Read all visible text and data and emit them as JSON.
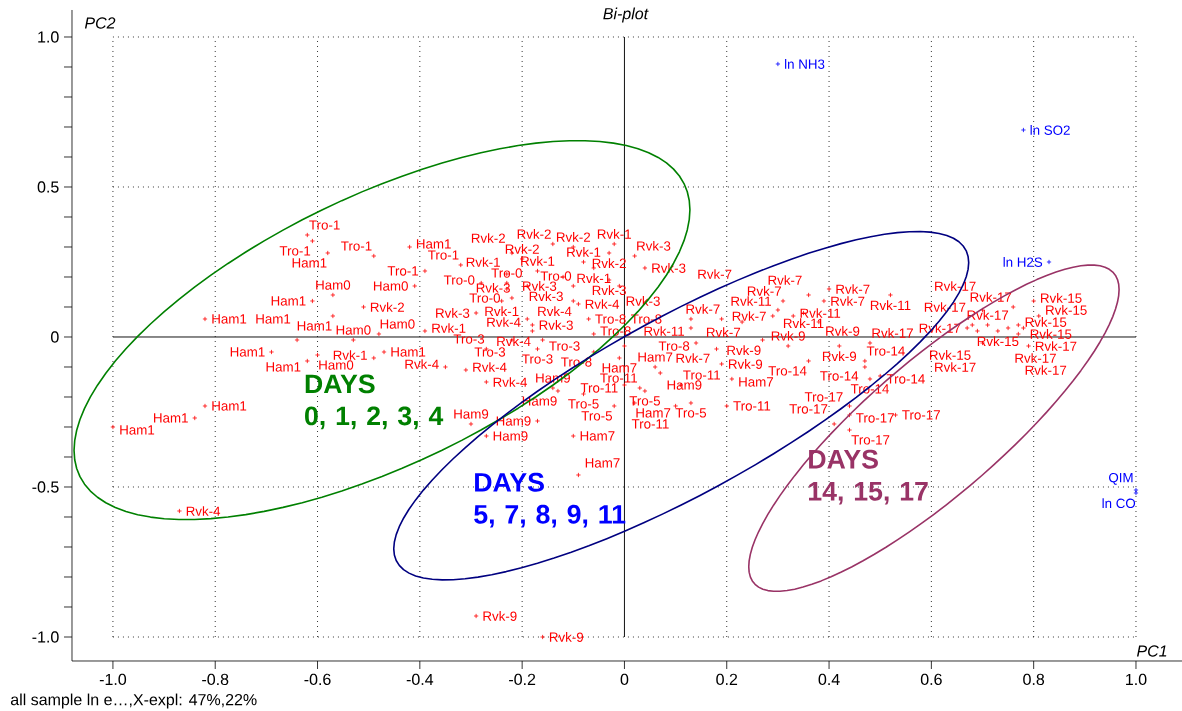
{
  "chart_data": {
    "type": "scatter",
    "title": "Bi-plot",
    "xlabel": "PC1",
    "ylabel": "PC2",
    "annotations": [
      "DAYS 0, 1, 2, 3, 4",
      "DAYS 5, 7, 8, 9, 11",
      "DAYS 14, 15, 17",
      "all sample ln e…,X-expl: 47%,22%"
    ],
    "xlim": [
      -1.08,
      1.09
    ],
    "ylim": [
      -1.08,
      1.09
    ],
    "xticks": [
      {
        "value": -1,
        "label": "-1.0"
      },
      -0.8,
      -0.6,
      -0.4,
      -0.2,
      0,
      0.2,
      0.4,
      0.6,
      0.8,
      {
        "value": 1,
        "label": "1.0"
      }
    ],
    "yticks": [
      {
        "value": -1,
        "label": "-1.0"
      },
      -0.5,
      0,
      0.5,
      {
        "value": 1,
        "label": "1.0"
      }
    ],
    "grid": true,
    "marker": "cross",
    "series": [
      {
        "color": "#ff0000",
        "x": [
          -0.62,
          -0.61,
          -0.58,
          -0.49,
          -0.42,
          -0.39,
          -0.41,
          -0.32,
          -0.57,
          -0.61,
          -0.51,
          -0.57,
          -0.82,
          -0.64,
          -0.48,
          -0.53,
          -0.69,
          -0.6,
          -0.62,
          -0.49,
          -0.47,
          -0.82,
          -0.84,
          -1.0,
          -0.87,
          -0.39,
          -0.29,
          -0.24,
          -0.22,
          -0.28,
          -0.23,
          -0.23,
          -0.1,
          -0.14,
          -0.1,
          -0.02,
          -0.03,
          -0.22,
          -0.2,
          -0.08,
          0.02,
          -0.06,
          0.04,
          -0.23,
          -0.17,
          -0.12,
          -0.03,
          -0.19,
          -0.01,
          -0.1,
          -0.09,
          -0.19,
          -0.18,
          -0.18,
          -0.07,
          -0.06,
          -0.22,
          -0.16,
          -0.27,
          -0.17,
          -0.06,
          0.0,
          -0.01,
          -0.35,
          -0.31,
          -0.27,
          -0.14,
          -0.13,
          -0.08,
          0.0,
          0.03,
          0.04,
          -0.02,
          0.02,
          0.06,
          0.07,
          -0.3,
          -0.27,
          -0.17,
          -0.1,
          -0.09,
          -0.29,
          -0.16,
          0.52,
          0.4,
          0.36,
          0.31,
          0.39,
          0.35,
          0.3,
          0.33,
          0.29,
          0.13,
          0.19,
          0.23,
          0.38,
          0.13,
          0.14,
          0.27,
          0.18,
          0.32,
          0.42,
          0.48,
          0.19,
          0.36,
          0.47,
          0.47,
          0.48,
          0.5,
          0.21,
          0.11,
          0.2,
          0.13,
          0.1,
          0.44,
          0.44,
          0.53,
          0.41,
          0.44,
          0.8,
          0.76,
          0.81,
          0.7,
          0.78,
          0.67,
          0.68,
          0.69,
          0.71,
          0.73,
          0.75,
          0.77,
          0.7,
          0.79,
          0.77
        ],
        "values": [
          0.34,
          0.32,
          0.28,
          0.27,
          0.3,
          0.22,
          0.17,
          0.24,
          0.14,
          0.12,
          0.1,
          0.07,
          0.06,
          -0.01,
          0.01,
          -0.01,
          -0.05,
          -0.06,
          -0.08,
          -0.07,
          -0.05,
          -0.23,
          -0.27,
          -0.3,
          -0.58,
          0.02,
          0.08,
          0.12,
          0.13,
          0.18,
          0.18,
          0.16,
          0.17,
          0.31,
          0.3,
          0.31,
          0.28,
          0.28,
          0.26,
          0.25,
          0.27,
          0.23,
          0.23,
          0.21,
          0.22,
          0.2,
          0.19,
          0.17,
          0.17,
          0.12,
          0.11,
          0.06,
          0.04,
          0.02,
          0.06,
          0.01,
          -0.01,
          -0.01,
          -0.04,
          -0.04,
          -0.05,
          -0.03,
          -0.07,
          -0.1,
          -0.11,
          -0.15,
          -0.17,
          -0.18,
          -0.19,
          -0.16,
          -0.17,
          -0.18,
          -0.23,
          -0.22,
          -0.1,
          -0.12,
          -0.29,
          -0.33,
          -0.28,
          -0.33,
          -0.46,
          -0.93,
          -1.0,
          0.14,
          0.16,
          0.14,
          0.12,
          0.12,
          0.08,
          0.09,
          0.07,
          0.07,
          0.06,
          0.06,
          0.05,
          0.05,
          0.03,
          -0.02,
          -0.01,
          -0.04,
          -0.03,
          -0.03,
          -0.02,
          -0.09,
          -0.08,
          -0.08,
          -0.1,
          -0.14,
          -0.13,
          -0.14,
          -0.16,
          -0.23,
          -0.22,
          -0.23,
          -0.23,
          -0.26,
          -0.26,
          -0.29,
          -0.31,
          0.12,
          0.1,
          0.07,
          0.09,
          0.03,
          0.03,
          0.04,
          0.02,
          0.04,
          0.02,
          0.03,
          0.04,
          -0.02,
          -0.03,
          0.01
        ],
        "value_labels": [
          "Tro-1",
          "Tro-1",
          "Ham1",
          "Tro-1",
          "Ham1",
          "Tro-1",
          "Ham0",
          "Tro-1",
          "Ham0",
          "Ham1",
          "Rvk-2",
          "Ham1",
          "Ham1",
          "Ham1",
          "Ham0",
          "Ham0",
          "Ham1",
          "Ham0",
          "Ham1",
          "Rvk-1",
          "Ham1",
          "Ham1",
          "Ham1",
          "Ham1",
          "Rvk-4",
          "Rvk-1",
          "Rvk-3",
          "Rvk-1",
          "Rvk-3",
          "Tro-0",
          "Tro-0",
          "Tro-0",
          "Tro-0",
          "Rvk-2",
          "Rvk-2",
          "Rvk-1",
          "Rvk-2",
          "Rvk-2",
          "Rvk-2",
          "Rvk-1",
          "Rvk-3",
          "Rvk-1",
          "Rvk-3",
          "Rvk-1",
          "Rvk-1",
          "Rvk-3",
          "Rvk-3",
          "Rvk-3",
          "Rvk-3",
          "Rvk-4",
          "Rvk-4",
          "Rvk-4",
          "Rvk-3",
          "Rvk-4",
          "Tro-8",
          "Tro-8",
          "Tro-3",
          "Tro-3",
          "Tro-3",
          "Tro-3",
          "Tro-8",
          "Tro-8",
          "Ham7",
          "Rvk-4",
          "Rvk-4",
          "Rvk-4",
          "Ham9",
          "Ham9",
          "Tro-5",
          "Tro-11",
          "Tro-11",
          "Tro-5",
          "Tro-5",
          "Ham7",
          "Ham7",
          "Ham9",
          "Ham9",
          "Ham9",
          "Ham9",
          "Ham7",
          "Ham7",
          "Rvk-9",
          "Rvk-9",
          "Rvk-11",
          "Rvk-7",
          "Rvk-7",
          "Rvk-7",
          "Rvk-7",
          "Rvk-11",
          "Rvk-11",
          "Rvk-11",
          "Rvk-7",
          "Rvk-7",
          "Rvk-7",
          "Rvk-7",
          "Rvk-9",
          "Rvk-11",
          "Tro-8",
          "Rvk-9",
          "Rvk-7",
          "Rvk-9",
          "Rvk-9",
          "Rvk-17",
          "Rvk-9",
          "Tro-14",
          "Tro-14",
          "Tro-14",
          "Tro-14",
          "Tro-14",
          "Ham7",
          "Tro-11",
          "Tro-11",
          "Tro-5",
          "Tro-11",
          "Tro-17",
          "Tro-17",
          "Tro-17",
          "Tro-17",
          "Tro-17",
          "Rvk-15",
          "Rvk-17",
          "Rvk-15",
          "Rvk-17",
          "Rvk-15",
          "Rvk-17",
          "Rvk-17",
          "Rvk-15",
          "Rvk-17",
          "Rvk-15",
          "Rvk-17",
          "Rvk-15",
          "Rvk-17",
          "Rvk-17",
          "Rvk-17"
        ]
      },
      {
        "color": "#0000ff",
        "x": [
          0.3,
          0.78,
          0.83,
          1.0,
          1.0
        ],
        "values": [
          0.91,
          0.69,
          0.25,
          -0.52,
          -0.51
        ],
        "value_labels": [
          "ln NH3",
          "ln SO2",
          "ln H2S",
          "ln CO",
          "QIM"
        ]
      }
    ]
  }
}
